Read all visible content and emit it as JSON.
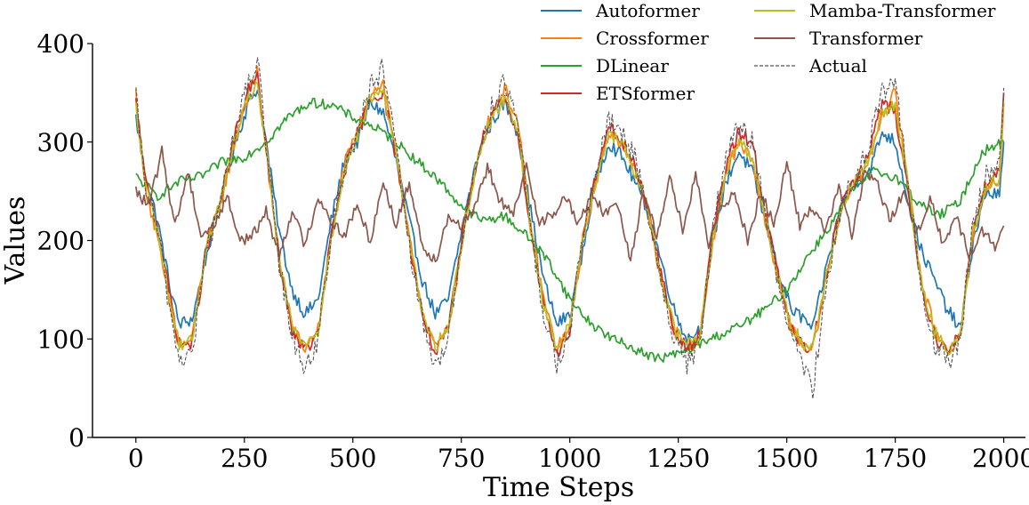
{
  "chart_data": {
    "type": "line",
    "title": "",
    "xlabel": "Time Steps",
    "ylabel": "Values",
    "xlim": [
      -100,
      2050
    ],
    "ylim": [
      0,
      400
    ],
    "xticks": [
      0,
      250,
      500,
      750,
      1000,
      1250,
      1500,
      1750,
      2000
    ],
    "yticks": [
      0,
      100,
      200,
      300,
      400
    ],
    "xtick_labels": [
      "0",
      "250",
      "500",
      "750",
      "1000",
      "1250",
      "1500",
      "1750",
      "2000"
    ],
    "ytick_labels": [
      "0",
      "100",
      "200",
      "300",
      "400"
    ],
    "grid": false,
    "legend_position": "top-right",
    "series": [
      {
        "name": "Autoformer",
        "color": "#1f77b4",
        "dashed": false,
        "x": [
          0,
          20,
          50,
          80,
          100,
          130,
          160,
          200,
          230,
          260,
          280,
          300,
          330,
          360,
          390,
          420,
          450,
          480,
          510,
          540,
          570,
          600,
          630,
          660,
          690,
          720,
          760,
          790,
          820,
          850,
          880,
          910,
          940,
          970,
          1000,
          1030,
          1060,
          1090,
          1120,
          1150,
          1180,
          1210,
          1240,
          1270,
          1300,
          1330,
          1360,
          1390,
          1420,
          1450,
          1480,
          1510,
          1540,
          1560,
          1600,
          1630,
          1660,
          1690,
          1720,
          1750,
          1780,
          1810,
          1840,
          1870,
          1900,
          1930,
          1960,
          1990,
          2000
        ],
        "y": [
          325,
          270,
          220,
          150,
          115,
          120,
          180,
          250,
          300,
          340,
          355,
          300,
          210,
          150,
          125,
          140,
          220,
          280,
          300,
          340,
          330,
          280,
          220,
          160,
          125,
          140,
          230,
          290,
          320,
          340,
          310,
          230,
          160,
          115,
          125,
          190,
          260,
          300,
          285,
          260,
          230,
          180,
          130,
          100,
          110,
          200,
          260,
          290,
          270,
          220,
          170,
          130,
          120,
          110,
          190,
          240,
          260,
          270,
          310,
          300,
          240,
          190,
          160,
          130,
          110,
          200,
          250,
          245,
          300
        ]
      },
      {
        "name": "Crossformer",
        "color": "#ff7f0e",
        "dashed": false,
        "x": [
          0,
          20,
          50,
          80,
          100,
          130,
          160,
          200,
          230,
          260,
          280,
          300,
          330,
          360,
          390,
          420,
          450,
          480,
          510,
          540,
          570,
          600,
          630,
          660,
          690,
          720,
          760,
          790,
          820,
          850,
          880,
          910,
          940,
          970,
          1000,
          1030,
          1060,
          1090,
          1120,
          1150,
          1180,
          1210,
          1240,
          1270,
          1300,
          1330,
          1360,
          1390,
          1420,
          1450,
          1480,
          1510,
          1540,
          1560,
          1600,
          1630,
          1660,
          1690,
          1720,
          1750,
          1780,
          1810,
          1840,
          1870,
          1900,
          1930,
          1960,
          1990,
          2000
        ],
        "y": [
          350,
          260,
          200,
          130,
          90,
          100,
          190,
          245,
          305,
          350,
          372,
          290,
          180,
          110,
          90,
          110,
          200,
          275,
          310,
          350,
          360,
          290,
          200,
          130,
          90,
          110,
          220,
          290,
          330,
          355,
          320,
          215,
          140,
          90,
          110,
          200,
          260,
          310,
          300,
          270,
          230,
          160,
          110,
          90,
          100,
          200,
          270,
          300,
          280,
          220,
          160,
          110,
          90,
          90,
          180,
          240,
          260,
          280,
          330,
          350,
          260,
          160,
          110,
          90,
          100,
          210,
          255,
          260,
          340
        ]
      },
      {
        "name": "DLinear",
        "color": "#2ca02c",
        "dashed": false,
        "x": [
          0,
          50,
          100,
          150,
          200,
          250,
          300,
          350,
          400,
          450,
          500,
          550,
          600,
          650,
          700,
          750,
          800,
          850,
          900,
          950,
          1000,
          1050,
          1100,
          1150,
          1200,
          1250,
          1300,
          1350,
          1400,
          1450,
          1500,
          1550,
          1600,
          1650,
          1700,
          1750,
          1800,
          1850,
          1900,
          1950,
          2000
        ],
        "y": [
          265,
          245,
          260,
          265,
          280,
          285,
          300,
          325,
          340,
          338,
          325,
          315,
          300,
          280,
          260,
          235,
          220,
          225,
          205,
          180,
          140,
          115,
          100,
          90,
          80,
          85,
          95,
          105,
          115,
          130,
          150,
          185,
          215,
          250,
          270,
          265,
          240,
          225,
          240,
          290,
          300
        ]
      },
      {
        "name": "ETSformer",
        "color": "#d62728",
        "dashed": false,
        "x": [
          0,
          20,
          50,
          80,
          100,
          130,
          160,
          200,
          230,
          260,
          280,
          300,
          330,
          360,
          390,
          420,
          450,
          480,
          510,
          540,
          570,
          600,
          630,
          660,
          690,
          720,
          760,
          790,
          820,
          850,
          880,
          910,
          940,
          970,
          1000,
          1030,
          1060,
          1090,
          1120,
          1150,
          1180,
          1210,
          1240,
          1270,
          1300,
          1330,
          1360,
          1390,
          1420,
          1450,
          1480,
          1510,
          1540,
          1560,
          1600,
          1630,
          1660,
          1690,
          1720,
          1750,
          1780,
          1810,
          1840,
          1870,
          1900,
          1930,
          1960,
          1990,
          2000
        ],
        "y": [
          340,
          265,
          215,
          140,
          95,
          95,
          185,
          250,
          310,
          355,
          365,
          295,
          180,
          110,
          88,
          105,
          205,
          270,
          305,
          345,
          350,
          285,
          200,
          125,
          85,
          110,
          225,
          290,
          330,
          345,
          310,
          210,
          130,
          85,
          110,
          205,
          265,
          315,
          300,
          275,
          235,
          165,
          110,
          90,
          105,
          210,
          275,
          310,
          300,
          230,
          165,
          110,
          90,
          95,
          185,
          245,
          260,
          290,
          340,
          330,
          250,
          155,
          105,
          85,
          105,
          215,
          260,
          270,
          350
        ]
      },
      {
        "name": "Mamba-Transformer",
        "color": "#bcbd22",
        "dashed": false,
        "x": [
          0,
          20,
          50,
          80,
          100,
          130,
          160,
          200,
          230,
          260,
          280,
          300,
          330,
          360,
          390,
          420,
          450,
          480,
          510,
          540,
          570,
          600,
          630,
          660,
          690,
          720,
          760,
          790,
          820,
          850,
          880,
          910,
          940,
          970,
          1000,
          1030,
          1060,
          1090,
          1120,
          1150,
          1180,
          1210,
          1240,
          1270,
          1300,
          1330,
          1360,
          1390,
          1420,
          1450,
          1480,
          1510,
          1540,
          1560,
          1600,
          1630,
          1660,
          1690,
          1720,
          1750,
          1780,
          1810,
          1840,
          1870,
          1900,
          1930,
          1960,
          1990,
          2000
        ],
        "y": [
          335,
          262,
          210,
          135,
          95,
          98,
          188,
          248,
          305,
          345,
          360,
          292,
          182,
          112,
          92,
          108,
          202,
          272,
          305,
          345,
          352,
          288,
          200,
          128,
          92,
          112,
          222,
          288,
          325,
          345,
          315,
          212,
          135,
          92,
          112,
          202,
          262,
          308,
          298,
          270,
          232,
          162,
          112,
          95,
          105,
          205,
          270,
          302,
          285,
          225,
          162,
          112,
          95,
          95,
          182,
          240,
          262,
          282,
          330,
          340,
          255,
          158,
          108,
          88,
          105,
          210,
          258,
          262,
          340
        ]
      },
      {
        "name": "Transformer",
        "color": "#8c564b",
        "dashed": false,
        "x": [
          0,
          30,
          60,
          90,
          120,
          150,
          180,
          210,
          240,
          270,
          300,
          330,
          360,
          390,
          420,
          450,
          480,
          510,
          540,
          570,
          600,
          630,
          660,
          690,
          720,
          750,
          780,
          810,
          840,
          870,
          900,
          930,
          960,
          990,
          1020,
          1050,
          1080,
          1110,
          1140,
          1170,
          1200,
          1230,
          1260,
          1290,
          1320,
          1350,
          1380,
          1410,
          1440,
          1470,
          1500,
          1530,
          1560,
          1590,
          1620,
          1650,
          1680,
          1710,
          1740,
          1770,
          1800,
          1830,
          1860,
          1890,
          1920,
          1950,
          1980,
          2000
        ],
        "y": [
          250,
          235,
          290,
          215,
          270,
          205,
          215,
          245,
          200,
          205,
          230,
          185,
          230,
          195,
          245,
          220,
          205,
          235,
          200,
          260,
          215,
          260,
          195,
          180,
          225,
          215,
          230,
          275,
          240,
          225,
          275,
          220,
          225,
          245,
          215,
          250,
          225,
          240,
          180,
          250,
          205,
          265,
          210,
          265,
          195,
          235,
          250,
          200,
          250,
          215,
          280,
          215,
          235,
          210,
          255,
          205,
          270,
          255,
          220,
          250,
          205,
          245,
          195,
          225,
          185,
          210,
          195,
          215
        ]
      },
      {
        "name": "Actual",
        "color": "#555555",
        "dashed": true,
        "x": [
          0,
          20,
          50,
          80,
          100,
          130,
          160,
          200,
          230,
          260,
          280,
          300,
          330,
          360,
          390,
          420,
          450,
          480,
          510,
          540,
          570,
          600,
          630,
          660,
          690,
          720,
          760,
          790,
          820,
          850,
          880,
          910,
          940,
          970,
          1000,
          1030,
          1060,
          1090,
          1120,
          1150,
          1180,
          1210,
          1240,
          1270,
          1300,
          1330,
          1360,
          1390,
          1420,
          1450,
          1480,
          1510,
          1540,
          1560,
          1600,
          1630,
          1660,
          1690,
          1720,
          1750,
          1780,
          1810,
          1840,
          1870,
          1900,
          1930,
          1960,
          1990,
          2000
        ],
        "y": [
          345,
          260,
          210,
          125,
          80,
          85,
          185,
          250,
          315,
          360,
          385,
          295,
          175,
          105,
          70,
          100,
          205,
          275,
          310,
          355,
          375,
          290,
          195,
          120,
          70,
          105,
          225,
          290,
          335,
          360,
          320,
          210,
          125,
          75,
          105,
          205,
          270,
          320,
          310,
          285,
          230,
          160,
          100,
          75,
          95,
          210,
          285,
          315,
          300,
          230,
          160,
          100,
          70,
          50,
          180,
          245,
          265,
          300,
          350,
          360,
          255,
          150,
          95,
          75,
          100,
          220,
          265,
          280,
          355
        ]
      }
    ]
  }
}
